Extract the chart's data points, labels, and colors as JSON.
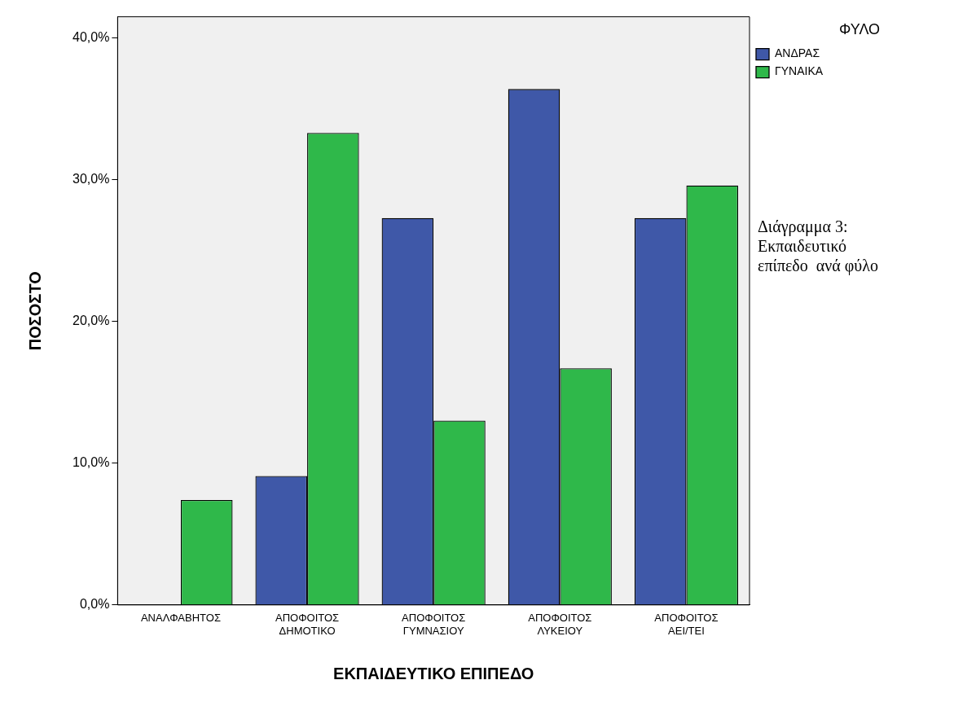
{
  "chart_data": {
    "type": "bar",
    "xlabel": "ΕΚΠΑΙΔΕΥΤΙΚΟ ΕΠΙΠΕΔΟ",
    "ylabel": "ΠΟΣΟΣΤΟ",
    "legend_title": "ΦΥΛΟ",
    "legend": "top right",
    "grid": false,
    "categories": [
      "ΑΝΑΛΦΑΒΗΤΟΣ",
      "ΑΠΟΦΟΙΤΟΣ\nΔΗΜΟΤΙΚΟ",
      "ΑΠΟΦΟΙΤΟΣ\nΓΥΜΝΑΣΙΟΥ",
      "ΑΠΟΦΟΙΤΟΣ\nΛΥΚΕΙΟΥ",
      "ΑΠΟΦΟΙΤΟΣ\nΑΕΙ/ΤΕΙ"
    ],
    "series": [
      {
        "name": "ΑΝΔΡΑΣ",
        "color": "#3f58a8",
        "values": [
          0,
          9.1,
          27.3,
          36.4,
          27.3
        ]
      },
      {
        "name": "ΓΥΝΑΙΚΑ",
        "color": "#2fb84a",
        "values": [
          7.4,
          33.3,
          13.0,
          16.7,
          29.6
        ]
      }
    ],
    "ylim": [
      0,
      41.5
    ],
    "yticks": [
      {
        "value": 0,
        "label": "0,0%"
      },
      {
        "value": 10,
        "label": "10,0%"
      },
      {
        "value": 20,
        "label": "20,0%"
      },
      {
        "value": 30,
        "label": "30,0%"
      },
      {
        "value": 40,
        "label": "40,0%"
      }
    ],
    "annotations": [
      "Διάγραμμα 3:\nΕκπαιδευτικό\nεπίπεδο  ανά φύλο"
    ]
  }
}
